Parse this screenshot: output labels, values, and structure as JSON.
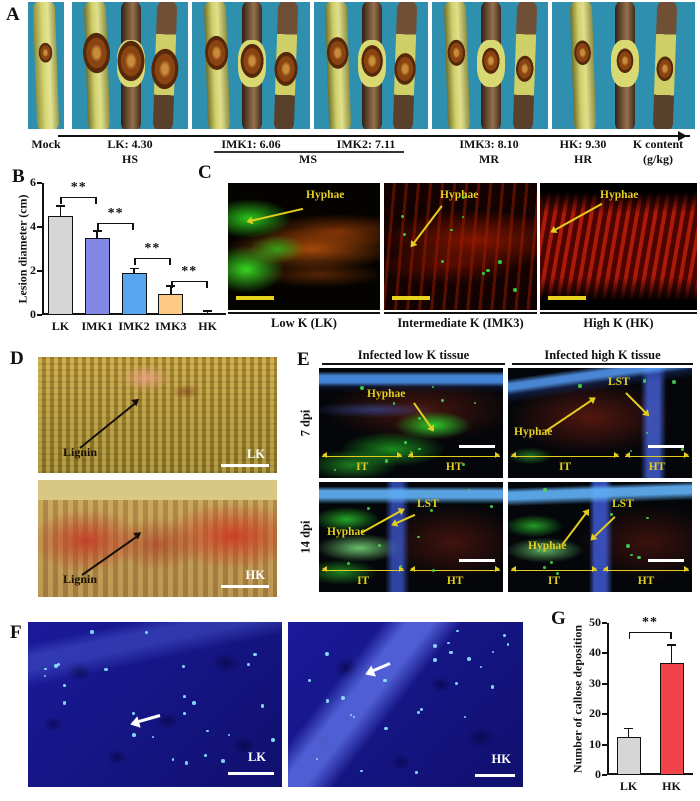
{
  "colors": {
    "panelA_background": "#2e8fae",
    "annotation_yellow": "#e3cd1e"
  },
  "panelA": {
    "label": "A",
    "bg_color": "#2e8fae",
    "groups": [
      {
        "top": "Mock",
        "bottom": "",
        "twigs": 1
      },
      {
        "top": "LK: 4.30",
        "bottom": "HS",
        "twigs": 3
      },
      {
        "top": "IMK1: 6.06",
        "bottom": "",
        "twigs": 3
      },
      {
        "top": "IMK2: 7.11",
        "bottom": "",
        "twigs": 3
      },
      {
        "top": "IMK3: 8.10",
        "bottom": "MR",
        "twigs": 3
      },
      {
        "top": "HK: 9.30",
        "bottom": "HR",
        "twigs": 3
      }
    ],
    "ms_label": "MS",
    "axis_label": "K content",
    "axis_unit": "(g/kg)"
  },
  "panelB": {
    "label": "B"
  },
  "panelC": {
    "label": "C",
    "hyphae": "Hyphae",
    "captions": [
      "Low K (LK)",
      "Intermediate K (IMK3)",
      "High K (HK)"
    ]
  },
  "panelD": {
    "label": "D",
    "lignin": "Lignin",
    "tags": [
      "LK",
      "HK"
    ]
  },
  "panelE": {
    "label": "E",
    "col_headers": [
      "Infected low K tissue",
      "Infected high K tissue"
    ],
    "row_labels": [
      "7 dpi",
      "14 dpi"
    ],
    "hyphae": "Hyphae",
    "lst": "LST",
    "it": "IT",
    "ht": "HT"
  },
  "panelF": {
    "label": "F",
    "tags": [
      "LK",
      "HK"
    ]
  },
  "panelG": {
    "label": "G"
  },
  "chart_data": [
    {
      "type": "bar",
      "panel": "B",
      "title": "",
      "ylabel": "Lesion diameter (cm)",
      "xlabel": "",
      "categories": [
        "LK",
        "IMK1",
        "IMK2",
        "IMK3",
        "HK"
      ],
      "values": [
        4.5,
        3.5,
        1.9,
        0.95,
        0.1
      ],
      "errors": [
        0.5,
        0.35,
        0.25,
        0.4,
        0.12
      ],
      "bar_colors": [
        "#d6d6d6",
        "#8287e3",
        "#57a5f1",
        "#fcca82",
        "#8c3a34"
      ],
      "ylim": [
        0,
        6
      ],
      "yticks": [
        0,
        2,
        4,
        6
      ],
      "grid": false,
      "significance": [
        {
          "from": 0,
          "to": 1,
          "y": 5.35,
          "label": "**"
        },
        {
          "from": 1,
          "to": 2,
          "y": 4.2,
          "label": "**"
        },
        {
          "from": 2,
          "to": 3,
          "y": 2.6,
          "label": "**"
        },
        {
          "from": 3,
          "to": 4,
          "y": 1.55,
          "label": "**"
        }
      ]
    },
    {
      "type": "bar",
      "panel": "G",
      "title": "",
      "ylabel": "Number of callose deposition",
      "xlabel": "",
      "categories": [
        "LK",
        "HK"
      ],
      "values": [
        12.5,
        37
      ],
      "errors": [
        3,
        6
      ],
      "bar_colors": [
        "#d6d6d6",
        "#f2434b"
      ],
      "ylim": [
        0,
        50
      ],
      "yticks": [
        0,
        10,
        20,
        30,
        40,
        50
      ],
      "grid": false,
      "significance": [
        {
          "from": 0,
          "to": 1,
          "y": 47,
          "label": "**"
        }
      ]
    }
  ]
}
